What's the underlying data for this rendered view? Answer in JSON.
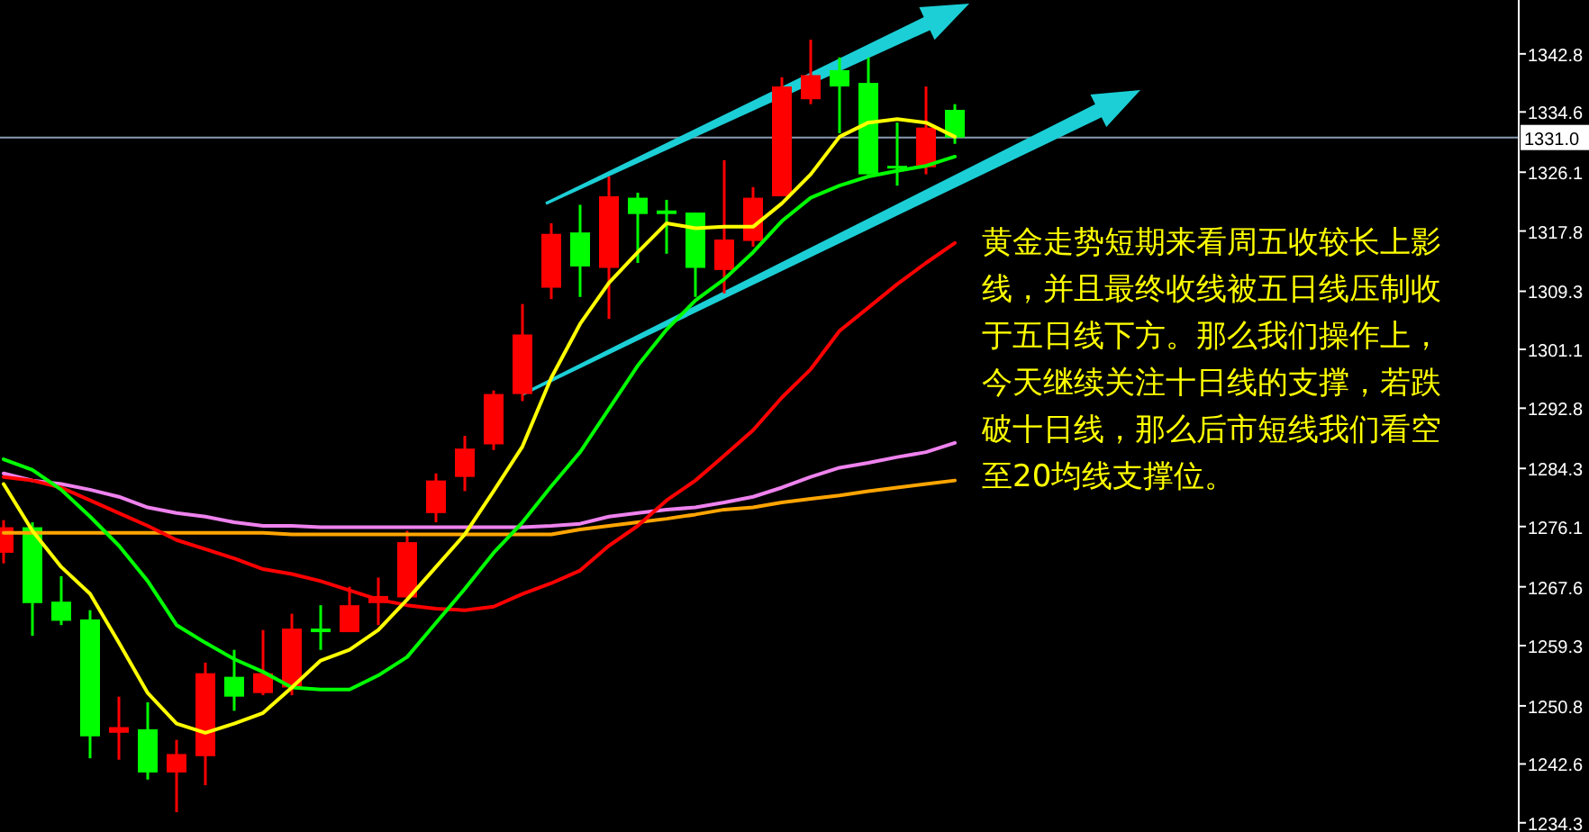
{
  "chart_data": {
    "type": "candlestick",
    "categories": [
      null,
      null,
      null,
      null,
      null,
      null,
      null,
      null,
      null,
      null,
      null,
      null,
      null,
      null,
      null,
      null,
      null,
      null,
      null,
      null,
      null,
      null,
      null,
      null,
      null,
      null,
      null,
      null,
      null,
      null,
      null,
      null,
      null,
      null
    ],
    "ohlc": [
      [
        1272.4,
        1277.0,
        1270.9,
        1276.0
      ],
      [
        1276.0,
        1276.7,
        1260.7,
        1265.3
      ],
      [
        1265.5,
        1269.1,
        1262.2,
        1262.8
      ],
      [
        1263.0,
        1264.3,
        1243.4,
        1246.5
      ],
      [
        1247.0,
        1252.1,
        1243.2,
        1247.8
      ],
      [
        1247.5,
        1251.3,
        1240.4,
        1241.4
      ],
      [
        1241.4,
        1246.0,
        1235.8,
        1244.0
      ],
      [
        1243.7,
        1256.9,
        1239.6,
        1255.4
      ],
      [
        1254.9,
        1258.7,
        1250.1,
        1252.1
      ],
      [
        1252.6,
        1261.5,
        1252.3,
        1255.4
      ],
      [
        1253.4,
        1263.8,
        1252.3,
        1261.7
      ],
      [
        1261.7,
        1265.0,
        1258.7,
        1261.2
      ],
      [
        1261.2,
        1267.6,
        1261.2,
        1265.0
      ],
      [
        1265.3,
        1268.9,
        1262.2,
        1266.3
      ],
      [
        1266.1,
        1275.5,
        1266.1,
        1273.9
      ],
      [
        1278.0,
        1283.6,
        1276.7,
        1282.6
      ],
      [
        1283.1,
        1288.9,
        1281.1,
        1287.1
      ],
      [
        1287.7,
        1295.3,
        1286.9,
        1294.8
      ],
      [
        1294.8,
        1307.5,
        1293.8,
        1303.2
      ],
      [
        1309.8,
        1318.9,
        1308.2,
        1317.4
      ],
      [
        1317.6,
        1321.5,
        1308.5,
        1312.8
      ],
      [
        1312.6,
        1325.5,
        1305.4,
        1322.7
      ],
      [
        1322.5,
        1323.2,
        1313.3,
        1320.2
      ],
      [
        1320.7,
        1322.2,
        1314.6,
        1320.2
      ],
      [
        1320.4,
        1320.4,
        1308.5,
        1312.6
      ],
      [
        1312.3,
        1327.8,
        1309.0,
        1316.6
      ],
      [
        1316.4,
        1324.0,
        1315.6,
        1322.5
      ],
      [
        1322.7,
        1339.5,
        1322.7,
        1338.2
      ],
      [
        1336.4,
        1344.8,
        1335.7,
        1339.8
      ],
      [
        1340.5,
        1342.3,
        1331.6,
        1338.2
      ],
      [
        1338.7,
        1342.3,
        1325.8,
        1325.8
      ],
      [
        1327.0,
        1333.1,
        1324.2,
        1326.8
      ],
      [
        1326.8,
        1338.2,
        1325.8,
        1332.4
      ],
      [
        1334.9,
        1335.7,
        1330.1,
        1331.0
      ]
    ],
    "colors": [
      "#ff0000",
      "#00ff00",
      "#00ff00",
      "#00ff00",
      "#ff0000",
      "#00ff00",
      "#ff0000",
      "#ff0000",
      "#00ff00",
      "#ff0000",
      "#ff0000",
      "#00ff00",
      "#ff0000",
      "#ff0000",
      "#ff0000",
      "#ff0000",
      "#ff0000",
      "#ff0000",
      "#ff0000",
      "#ff0000",
      "#00ff00",
      "#ff0000",
      "#00ff00",
      "#00ff00",
      "#00ff00",
      "#ff0000",
      "#ff0000",
      "#ff0000",
      "#ff0000",
      "#00ff00",
      "#00ff00",
      "#00ff00",
      "#ff0000",
      "#00ff00"
    ],
    "series": [
      {
        "type": "line",
        "color": "#ffa500",
        "values": [
          1275.2,
          1275.2,
          1275.2,
          1275.2,
          1275.2,
          1275.2,
          1275.2,
          1275.2,
          1275.2,
          1275.2,
          1275.0,
          1275.0,
          1275.0,
          1275.0,
          1275.0,
          1275.0,
          1275.0,
          1275.0,
          1275.0,
          1275.0,
          1275.7,
          1276.2,
          1276.7,
          1277.2,
          1277.8,
          1278.5,
          1278.8,
          1279.5,
          1280.0,
          1280.5,
          1281.1,
          1281.6,
          1282.1,
          1282.6
        ]
      },
      {
        "type": "line",
        "color": "#ee82ee",
        "values": [
          1283.6,
          1282.6,
          1282.1,
          1281.3,
          1280.3,
          1278.8,
          1278.0,
          1277.5,
          1276.7,
          1276.2,
          1276.2,
          1276.0,
          1276.0,
          1276.0,
          1276.0,
          1276.0,
          1276.0,
          1276.0,
          1276.0,
          1276.2,
          1276.5,
          1277.5,
          1278.0,
          1278.5,
          1278.8,
          1279.5,
          1280.3,
          1281.6,
          1283.1,
          1284.4,
          1285.1,
          1285.9,
          1286.6,
          1287.9
        ]
      },
      {
        "type": "line",
        "color": "#ff0000",
        "values": [
          1283.1,
          1282.6,
          1281.6,
          1279.8,
          1278.0,
          1276.2,
          1274.2,
          1272.9,
          1271.6,
          1270.1,
          1269.4,
          1268.4,
          1267.1,
          1265.8,
          1265.0,
          1264.5,
          1264.3,
          1264.8,
          1266.6,
          1268.1,
          1269.9,
          1273.4,
          1276.2,
          1279.8,
          1282.6,
          1286.1,
          1289.7,
          1294.3,
          1298.3,
          1303.7,
          1307.0,
          1310.3,
          1313.3,
          1316.1
        ]
      },
      {
        "type": "line",
        "color": "#00ff00",
        "values": [
          1285.6,
          1284.1,
          1281.3,
          1277.5,
          1273.4,
          1268.4,
          1262.2,
          1259.7,
          1257.4,
          1255.6,
          1253.4,
          1253.1,
          1253.1,
          1255.1,
          1257.7,
          1262.5,
          1267.3,
          1272.4,
          1276.7,
          1281.8,
          1286.6,
          1292.7,
          1298.8,
          1303.9,
          1308.0,
          1311.0,
          1314.8,
          1319.2,
          1322.5,
          1324.2,
          1325.5,
          1326.3,
          1327.0,
          1328.3
        ]
      },
      {
        "type": "line",
        "color": "#ffff00",
        "values": [
          1282.1,
          1275.5,
          1270.4,
          1266.6,
          1259.7,
          1252.6,
          1248.3,
          1247.0,
          1248.3,
          1249.8,
          1253.4,
          1257.2,
          1258.7,
          1261.5,
          1265.8,
          1270.4,
          1275.0,
          1281.1,
          1287.4,
          1297.1,
          1304.7,
          1310.5,
          1314.8,
          1318.9,
          1318.2,
          1318.4,
          1318.4,
          1321.7,
          1325.8,
          1331.1,
          1333.1,
          1333.6,
          1333.1,
          1331.1
        ]
      }
    ],
    "ylim": [
      1233.0,
      1350.4
    ],
    "yticks": [
      {
        "value": 1342.8,
        "label": "1342.8"
      },
      {
        "value": 1334.6,
        "label": "1334.6"
      },
      {
        "value": 1326.1,
        "label": "1326.1"
      },
      {
        "value": 1317.8,
        "label": "1317.8"
      },
      {
        "value": 1309.3,
        "label": "1309.3"
      },
      {
        "value": 1301.1,
        "label": "1301.1"
      },
      {
        "value": 1292.8,
        "label": "1292.8"
      },
      {
        "value": 1284.3,
        "label": "1284.3"
      },
      {
        "value": 1276.1,
        "label": "1276.1"
      },
      {
        "value": 1267.6,
        "label": "1267.6"
      },
      {
        "value": 1259.3,
        "label": "1259.3"
      },
      {
        "value": 1250.8,
        "label": "1250.8"
      },
      {
        "value": 1242.6,
        "label": "1242.6"
      },
      {
        "value": 1234.3,
        "label": "1234.3"
      }
    ],
    "ref_lines": [
      {
        "axis": "y",
        "value": 1331.0,
        "label": "1331.0",
        "color": "#8a9bb0"
      }
    ],
    "annotations": [
      "黄金走势短期来看周五收较长上影线，并且最终收线被五日线压制收于五日线下方。那么我们操作上，今天继续关注十日线的支撑，若跌破十日线，那么后市短线我们看空至20均线支撑位。"
    ],
    "grid": false
  }
}
